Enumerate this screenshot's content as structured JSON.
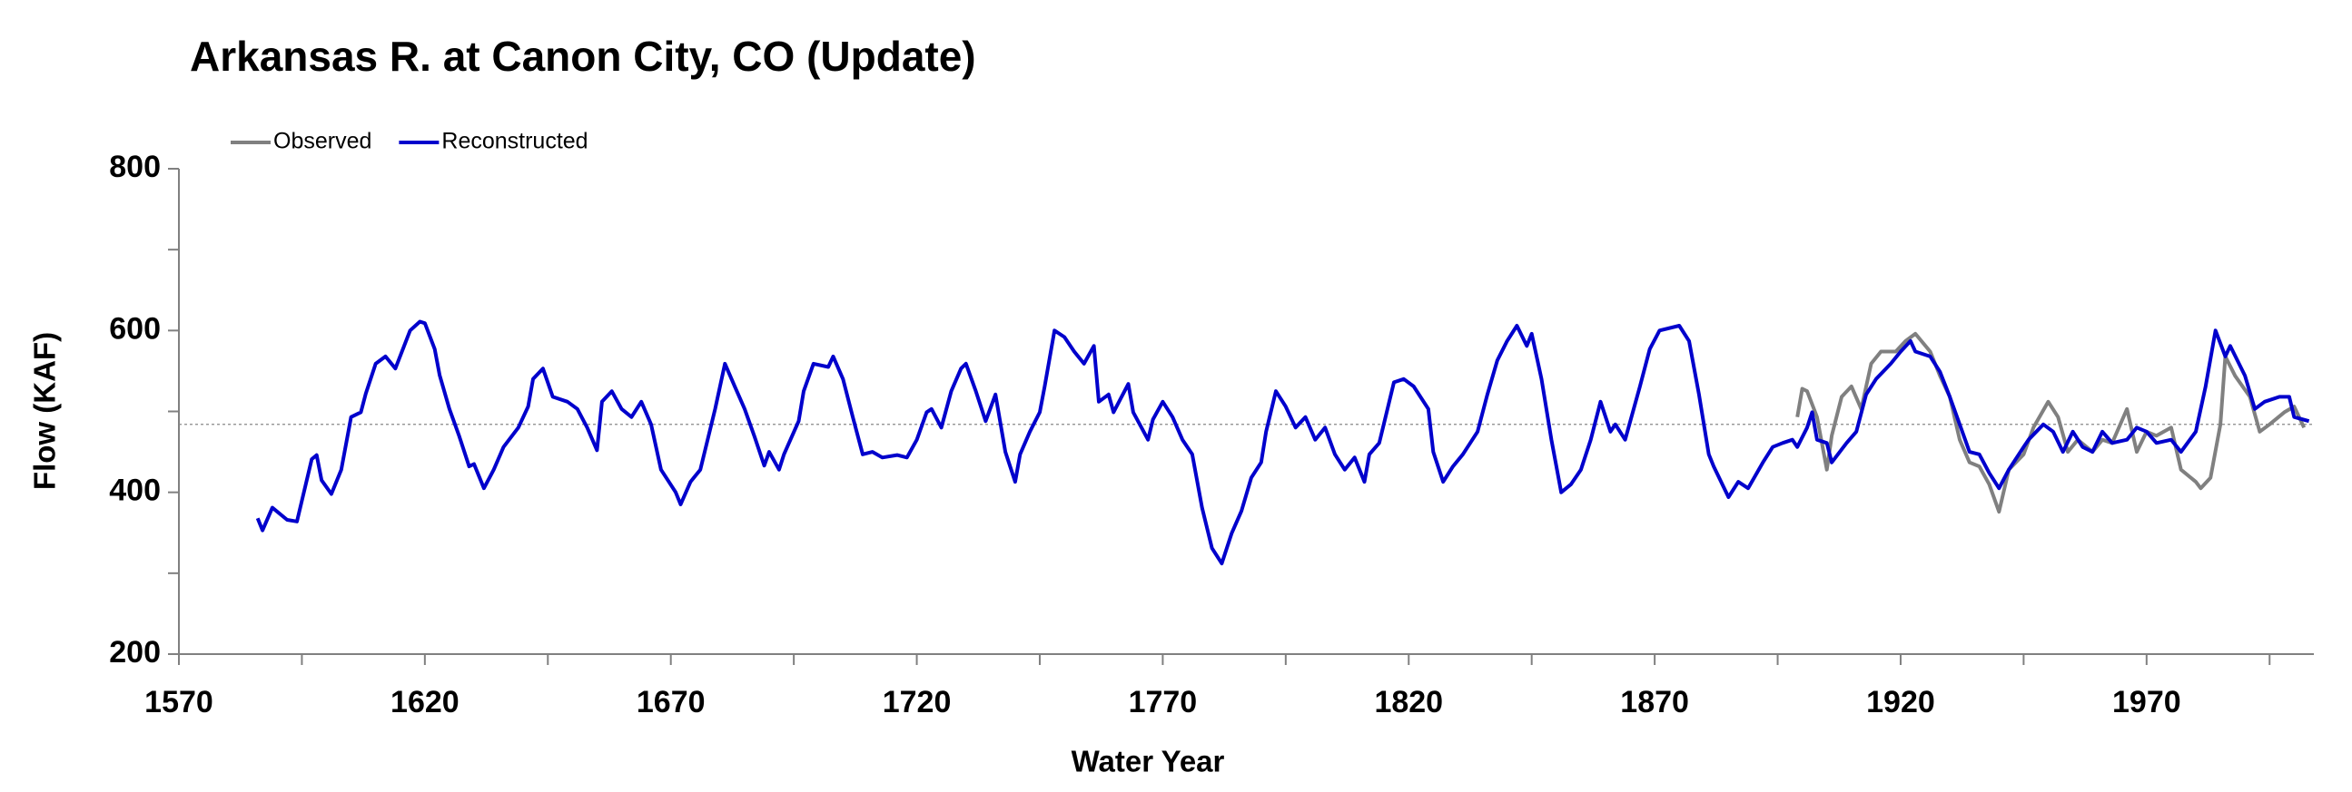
{
  "chart_data": {
    "type": "line",
    "title": "Arkansas R. at Canon City, CO (Update)",
    "x_label": "Water Year",
    "y_label": "Flow (KAF)",
    "xlim": [
      1570,
      2004
    ],
    "ylim": [
      200,
      800
    ],
    "xticks": [
      1570,
      1620,
      1670,
      1720,
      1770,
      1820,
      1870,
      1920,
      1970
    ],
    "xminorticks": [
      1595,
      1645,
      1695,
      1745,
      1795,
      1845,
      1895,
      1945,
      1995
    ],
    "yticks": [
      200,
      400,
      600,
      800
    ],
    "yminorticks": [
      300,
      500,
      700
    ],
    "reference_line": 484,
    "legend": "upper left",
    "grid": false,
    "series": [
      {
        "name": "Observed",
        "color": "#808080",
        "x": [
          1899,
          1900,
          1901,
          1903,
          1905,
          1906,
          1908,
          1910,
          1912,
          1914,
          1916,
          1919,
          1921,
          1923,
          1926,
          1928,
          1930,
          1932,
          1934,
          1936,
          1938,
          1940,
          1942,
          1945,
          1947,
          1950,
          1952,
          1954,
          1956,
          1959,
          1961,
          1963,
          1966,
          1968,
          1970,
          1972,
          1975,
          1977,
          1980,
          1981,
          1983,
          1985,
          1986,
          1988,
          1991,
          1993,
          1995,
          1998,
          2000,
          2002
        ],
        "values": [
          493,
          528,
          525,
          493,
          428,
          470,
          518,
          531,
          503,
          559,
          574,
          574,
          587,
          596,
          574,
          544,
          518,
          465,
          437,
          432,
          410,
          376,
          428,
          447,
          480,
          512,
          493,
          450,
          465,
          450,
          465,
          461,
          503,
          450,
          475,
          470,
          480,
          428,
          413,
          405,
          418,
          484,
          568,
          544,
          518,
          475,
          484,
          499,
          506,
          480
        ]
      },
      {
        "name": "Reconstructed",
        "color": "#0000cc",
        "x": [
          1586,
          1587,
          1589,
          1592,
          1594,
          1597,
          1598,
          1599,
          1601,
          1603,
          1605,
          1607,
          1608,
          1610,
          1612,
          1614,
          1617,
          1619,
          1620,
          1622,
          1623,
          1625,
          1627,
          1629,
          1630,
          1632,
          1634,
          1636,
          1639,
          1641,
          1642,
          1644,
          1646,
          1649,
          1651,
          1653,
          1655,
          1656,
          1658,
          1660,
          1662,
          1664,
          1666,
          1668,
          1671,
          1672,
          1674,
          1676,
          1679,
          1681,
          1683,
          1685,
          1687,
          1689,
          1690,
          1692,
          1693,
          1696,
          1697,
          1699,
          1702,
          1703,
          1705,
          1707,
          1709,
          1711,
          1713,
          1716,
          1718,
          1720,
          1722,
          1723,
          1725,
          1727,
          1729,
          1730,
          1732,
          1734,
          1736,
          1738,
          1740,
          1741,
          1743,
          1745,
          1746,
          1748,
          1750,
          1752,
          1754,
          1756,
          1757,
          1759,
          1760,
          1763,
          1764,
          1767,
          1768,
          1770,
          1772,
          1774,
          1776,
          1778,
          1780,
          1782,
          1784,
          1786,
          1788,
          1790,
          1791,
          1793,
          1795,
          1797,
          1799,
          1801,
          1803,
          1805,
          1807,
          1809,
          1811,
          1812,
          1814,
          1817,
          1819,
          1821,
          1824,
          1825,
          1827,
          1829,
          1831,
          1834,
          1836,
          1838,
          1840,
          1842,
          1844,
          1845,
          1847,
          1849,
          1851,
          1853,
          1855,
          1857,
          1859,
          1861,
          1862,
          1864,
          1867,
          1869,
          1871,
          1875,
          1877,
          1879,
          1881,
          1882,
          1885,
          1887,
          1889,
          1892,
          1894,
          1896,
          1898,
          1899,
          1901,
          1902,
          1903,
          1905,
          1906,
          1909,
          1911,
          1913,
          1915,
          1918,
          1920,
          1922,
          1923,
          1926,
          1928,
          1930,
          1932,
          1934,
          1936,
          1938,
          1940,
          1942,
          1945,
          1946,
          1949,
          1951,
          1953,
          1955,
          1957,
          1959,
          1961,
          1963,
          1966,
          1968,
          1970,
          1972,
          1975,
          1977,
          1980,
          1982,
          1984,
          1986,
          1987,
          1990,
          1992,
          1994,
          1997,
          1999,
          2000,
          2003
        ],
        "values": [
          368,
          353,
          381,
          366,
          364,
          441,
          446,
          415,
          398,
          428,
          493,
          499,
          522,
          559,
          568,
          553,
          600,
          611,
          609,
          577,
          545,
          503,
          469,
          432,
          435,
          405,
          428,
          456,
          480,
          506,
          540,
          553,
          518,
          512,
          503,
          480,
          452,
          512,
          525,
          503,
          493,
          512,
          484,
          428,
          400,
          385,
          413,
          428,
          503,
          559,
          531,
          503,
          469,
          433,
          450,
          428,
          447,
          488,
          525,
          559,
          555,
          568,
          540,
          493,
          447,
          450,
          443,
          446,
          443,
          465,
          499,
          503,
          480,
          525,
          553,
          559,
          525,
          488,
          521,
          450,
          413,
          447,
          475,
          499,
          531,
          600,
          592,
          574,
          559,
          581,
          512,
          521,
          499,
          534,
          499,
          465,
          490,
          512,
          493,
          465,
          447,
          381,
          331,
          312,
          349,
          377,
          418,
          437,
          475,
          525,
          506,
          480,
          493,
          465,
          480,
          447,
          428,
          443,
          413,
          447,
          461,
          536,
          540,
          531,
          503,
          450,
          413,
          432,
          447,
          475,
          521,
          563,
          587,
          606,
          581,
          596,
          540,
          465,
          400,
          410,
          428,
          465,
          512,
          475,
          484,
          465,
          531,
          577,
          600,
          606,
          587,
          521,
          447,
          432,
          394,
          413,
          405,
          437,
          456,
          461,
          465,
          456,
          480,
          499,
          465,
          461,
          437,
          461,
          475,
          521,
          540,
          559,
          574,
          587,
          574,
          568,
          549,
          518,
          484,
          450,
          447,
          424,
          405,
          428,
          456,
          465,
          484,
          475,
          450,
          475,
          456,
          450,
          475,
          461,
          465,
          480,
          475,
          461,
          465,
          450,
          475,
          531,
          600,
          568,
          581,
          544,
          503,
          512,
          518,
          518,
          493,
          488
        ]
      }
    ]
  }
}
